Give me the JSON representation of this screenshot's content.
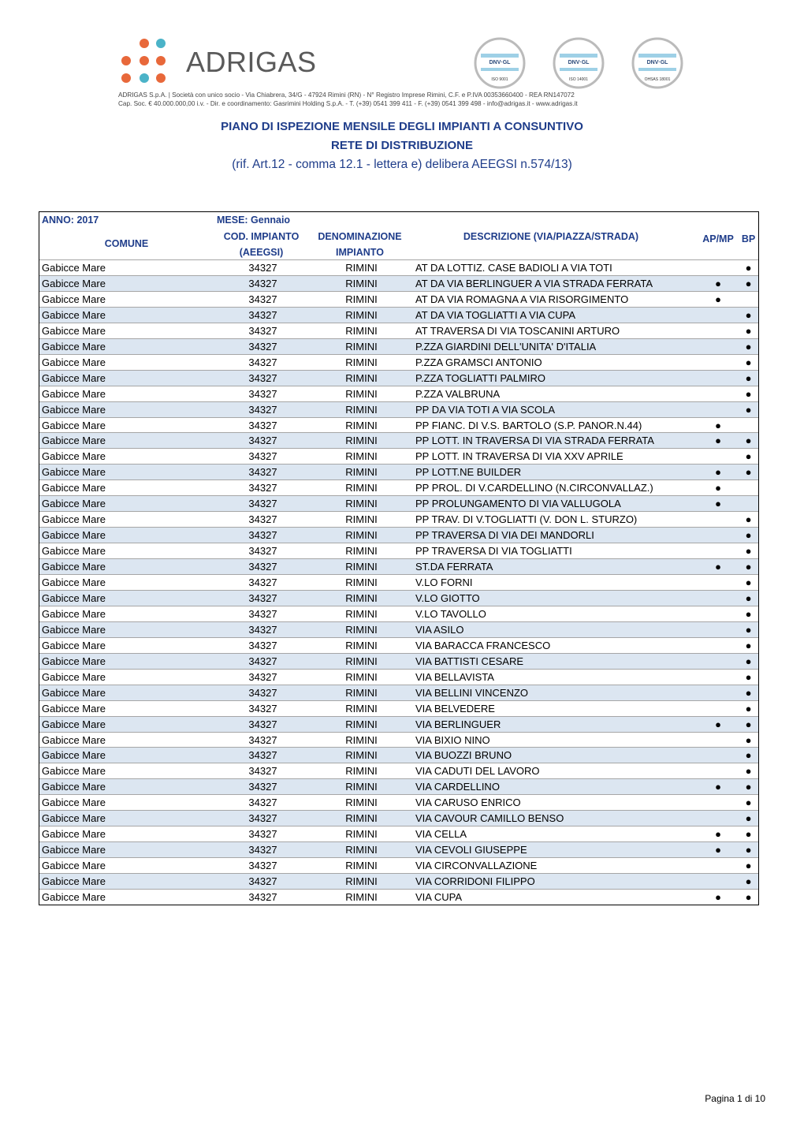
{
  "header": {
    "logo": "ADRIGAS",
    "company_line_1": "ADRIGAS S.p.A. | Società con unico socio - Via Chiabrera, 34/G - 47924 Rimini (RN) - N° Registro Imprese Rimini, C.F. e P.IVA 00353660400 - REA RN147072",
    "company_line_2": "Cap. Soc. € 40.000.000,00 i.v. - Dir. e coordinamento: Gasrimini Holding S.p.A. - T. (+39) 0541 399 411 - F. (+39) 0541 399 498 - info@adrigas.it - www.adrigas.it",
    "certifications": [
      {
        "brand": "DNV·GL",
        "standard": "ISO 9001"
      },
      {
        "brand": "DNV·GL",
        "standard": "ISO 14001"
      },
      {
        "brand": "DNV·GL",
        "standard": "OHSAS 18001"
      }
    ]
  },
  "title": {
    "line1": "PIANO DI ISPEZIONE MENSILE DEGLI IMPIANTI A CONSUNTIVO",
    "line2": "RETE DI DISTRIBUZIONE",
    "line3": "(rif. Art.12 - comma 12.1 - lettera e) delibera AEEGSI n.574/13)"
  },
  "table": {
    "anno": "ANNO: 2017",
    "mese": "MESE: Gennaio",
    "columns": [
      "COMUNE",
      "COD. IMPIANTO (AEEGSI)",
      "DENOMINAZIONE IMPIANTO",
      "DESCRIZIONE (VIA/PIAZZA/STRADA)",
      "AP/MP",
      "BP"
    ],
    "rows": [
      [
        "Gabicce Mare",
        "34327",
        "RIMINI",
        "AT DA LOTTIZ. CASE BADIOLI A VIA TOTI",
        null,
        "●"
      ],
      [
        "Gabicce Mare",
        "34327",
        "RIMINI",
        "AT DA VIA BERLINGUER A VIA STRADA FERRATA",
        "●",
        "●"
      ],
      [
        "Gabicce Mare",
        "34327",
        "RIMINI",
        "AT DA VIA ROMAGNA A VIA RISORGIMENTO",
        "●",
        null
      ],
      [
        "Gabicce Mare",
        "34327",
        "RIMINI",
        "AT DA VIA TOGLIATTI A VIA CUPA",
        null,
        "●"
      ],
      [
        "Gabicce Mare",
        "34327",
        "RIMINI",
        "AT TRAVERSA DI VIA TOSCANINI ARTURO",
        null,
        "●"
      ],
      [
        "Gabicce Mare",
        "34327",
        "RIMINI",
        "P.ZZA GIARDINI DELL'UNITA' D'ITALIA",
        null,
        "●"
      ],
      [
        "Gabicce Mare",
        "34327",
        "RIMINI",
        "P.ZZA GRAMSCI ANTONIO",
        null,
        "●"
      ],
      [
        "Gabicce Mare",
        "34327",
        "RIMINI",
        "P.ZZA TOGLIATTI PALMIRO",
        null,
        "●"
      ],
      [
        "Gabicce Mare",
        "34327",
        "RIMINI",
        "P.ZZA VALBRUNA",
        null,
        "●"
      ],
      [
        "Gabicce Mare",
        "34327",
        "RIMINI",
        "PP DA VIA TOTI A VIA SCOLA",
        null,
        "●"
      ],
      [
        "Gabicce Mare",
        "34327",
        "RIMINI",
        "PP FIANC. DI V.S. BARTOLO (S.P. PANOR.N.44)",
        "●",
        null
      ],
      [
        "Gabicce Mare",
        "34327",
        "RIMINI",
        "PP LOTT. IN TRAVERSA DI VIA STRADA FERRATA",
        "●",
        "●"
      ],
      [
        "Gabicce Mare",
        "34327",
        "RIMINI",
        "PP LOTT. IN TRAVERSA DI VIA XXV APRILE",
        null,
        "●"
      ],
      [
        "Gabicce Mare",
        "34327",
        "RIMINI",
        "PP LOTT.NE BUILDER",
        "●",
        "●"
      ],
      [
        "Gabicce Mare",
        "34327",
        "RIMINI",
        "PP PROL. DI V.CARDELLINO (N.CIRCONVALLAZ.)",
        "●",
        null
      ],
      [
        "Gabicce Mare",
        "34327",
        "RIMINI",
        "PP PROLUNGAMENTO DI VIA VALLUGOLA",
        "●",
        null
      ],
      [
        "Gabicce Mare",
        "34327",
        "RIMINI",
        "PP TRAV. DI V.TOGLIATTI (V. DON L. STURZO)",
        null,
        "●"
      ],
      [
        "Gabicce Mare",
        "34327",
        "RIMINI",
        "PP TRAVERSA DI VIA DEI MANDORLI",
        null,
        "●"
      ],
      [
        "Gabicce Mare",
        "34327",
        "RIMINI",
        "PP TRAVERSA DI VIA TOGLIATTI",
        null,
        "●"
      ],
      [
        "Gabicce Mare",
        "34327",
        "RIMINI",
        "ST.DA FERRATA",
        "●",
        "●"
      ],
      [
        "Gabicce Mare",
        "34327",
        "RIMINI",
        "V.LO FORNI",
        null,
        "●"
      ],
      [
        "Gabicce Mare",
        "34327",
        "RIMINI",
        "V.LO GIOTTO",
        null,
        "●"
      ],
      [
        "Gabicce Mare",
        "34327",
        "RIMINI",
        "V.LO TAVOLLO",
        null,
        "●"
      ],
      [
        "Gabicce Mare",
        "34327",
        "RIMINI",
        "VIA ASILO",
        null,
        "●"
      ],
      [
        "Gabicce Mare",
        "34327",
        "RIMINI",
        "VIA BARACCA FRANCESCO",
        null,
        "●"
      ],
      [
        "Gabicce Mare",
        "34327",
        "RIMINI",
        "VIA BATTISTI CESARE",
        null,
        "●"
      ],
      [
        "Gabicce Mare",
        "34327",
        "RIMINI",
        "VIA BELLAVISTA",
        null,
        "●"
      ],
      [
        "Gabicce Mare",
        "34327",
        "RIMINI",
        "VIA BELLINI VINCENZO",
        null,
        "●"
      ],
      [
        "Gabicce Mare",
        "34327",
        "RIMINI",
        "VIA BELVEDERE",
        null,
        "●"
      ],
      [
        "Gabicce Mare",
        "34327",
        "RIMINI",
        "VIA BERLINGUER",
        "●",
        "●"
      ],
      [
        "Gabicce Mare",
        "34327",
        "RIMINI",
        "VIA BIXIO NINO",
        null,
        "●"
      ],
      [
        "Gabicce Mare",
        "34327",
        "RIMINI",
        "VIA BUOZZI BRUNO",
        null,
        "●"
      ],
      [
        "Gabicce Mare",
        "34327",
        "RIMINI",
        "VIA CADUTI DEL LAVORO",
        null,
        "●"
      ],
      [
        "Gabicce Mare",
        "34327",
        "RIMINI",
        "VIA CARDELLINO",
        "●",
        "●"
      ],
      [
        "Gabicce Mare",
        "34327",
        "RIMINI",
        "VIA CARUSO ENRICO",
        null,
        "●"
      ],
      [
        "Gabicce Mare",
        "34327",
        "RIMINI",
        "VIA CAVOUR CAMILLO BENSO",
        null,
        "●"
      ],
      [
        "Gabicce Mare",
        "34327",
        "RIMINI",
        "VIA CELLA",
        "●",
        "●"
      ],
      [
        "Gabicce Mare",
        "34327",
        "RIMINI",
        "VIA CEVOLI GIUSEPPE",
        "●",
        "●"
      ],
      [
        "Gabicce Mare",
        "34327",
        "RIMINI",
        "VIA CIRCONVALLAZIONE",
        null,
        "●"
      ],
      [
        "Gabicce Mare",
        "34327",
        "RIMINI",
        "VIA CORRIDONI FILIPPO",
        null,
        "●"
      ],
      [
        "Gabicce Mare",
        "34327",
        "RIMINI",
        "VIA CUPA",
        "●",
        "●"
      ]
    ]
  },
  "footer": {
    "page": "Pagina 1 di 10"
  }
}
